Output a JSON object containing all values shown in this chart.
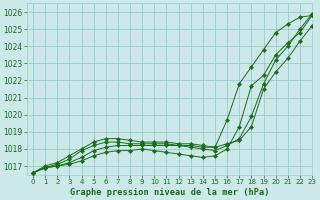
{
  "title": "Graphe pression niveau de la mer (hPa)",
  "bg_color": "#cce8e8",
  "grid_color": "#99cccc",
  "line_color": "#1a6b1a",
  "marker_color": "#1a6b1a",
  "xlim": [
    -0.5,
    23
  ],
  "ylim": [
    1016.5,
    1026.5
  ],
  "yticks": [
    1017,
    1018,
    1019,
    1020,
    1021,
    1022,
    1023,
    1024,
    1025,
    1026
  ],
  "xticks": [
    0,
    1,
    2,
    3,
    4,
    5,
    6,
    7,
    8,
    9,
    10,
    11,
    12,
    13,
    14,
    15,
    16,
    17,
    18,
    19,
    20,
    21,
    22,
    23
  ],
  "series": [
    [
      1016.6,
      1016.9,
      1017.0,
      1017.1,
      1017.3,
      1017.6,
      1017.8,
      1017.9,
      1017.9,
      1018.0,
      1017.9,
      1017.8,
      1017.7,
      1017.6,
      1017.5,
      1017.6,
      1018.0,
      1019.3,
      1021.7,
      1022.3,
      1023.5,
      1024.2,
      1024.8,
      1025.8
    ],
    [
      1016.6,
      1016.9,
      1017.0,
      1017.2,
      1017.5,
      1017.9,
      1018.1,
      1018.2,
      1018.2,
      1018.2,
      1018.2,
      1018.2,
      1018.2,
      1018.2,
      1018.1,
      1018.1,
      1018.3,
      1018.5,
      1019.3,
      1021.5,
      1022.5,
      1023.3,
      1024.3,
      1025.2
    ],
    [
      1016.6,
      1016.9,
      1017.1,
      1017.4,
      1017.9,
      1018.2,
      1018.4,
      1018.4,
      1018.3,
      1018.3,
      1018.3,
      1018.3,
      1018.2,
      1018.1,
      1018.0,
      1017.9,
      1018.2,
      1018.6,
      1019.9,
      1021.8,
      1023.2,
      1024.0,
      1025.0,
      1025.9
    ],
    [
      1016.6,
      1017.0,
      1017.2,
      1017.6,
      1018.0,
      1018.4,
      1018.6,
      1018.6,
      1018.5,
      1018.4,
      1018.4,
      1018.4,
      1018.3,
      1018.3,
      1018.2,
      1018.1,
      1019.7,
      1021.8,
      1022.8,
      1023.8,
      1024.8,
      1025.3,
      1025.7,
      1025.8
    ]
  ]
}
